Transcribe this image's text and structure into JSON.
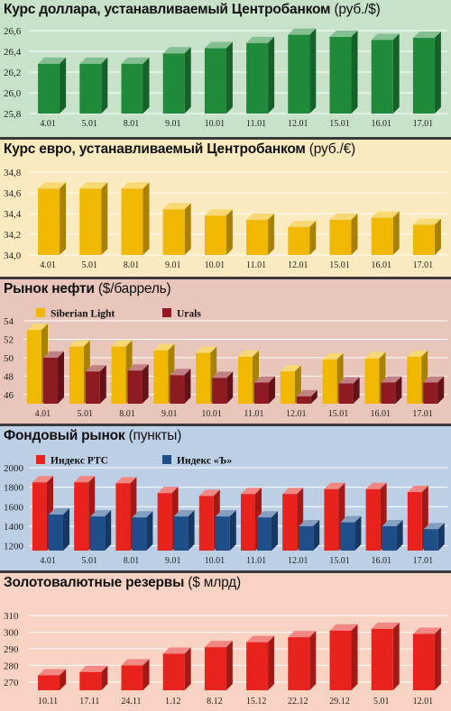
{
  "chart_data": [
    {
      "type": "bar",
      "title": "Курс доллара, устанавливаемый Центробанком",
      "unit": "(руб./$)",
      "categories": [
        "4.01",
        "5.01",
        "8.01",
        "9.01",
        "10.01",
        "11.01",
        "12.01",
        "15.01",
        "16.01",
        "17.01"
      ],
      "series": [
        {
          "values": [
            26.28,
            26.28,
            26.28,
            26.38,
            26.43,
            26.48,
            26.56,
            26.54,
            26.51,
            26.53
          ]
        }
      ],
      "ylim": [
        25.8,
        26.6
      ],
      "yticks": [
        "25,8",
        "26,0",
        "26,2",
        "26,4",
        "26,6"
      ],
      "colors": {
        "bar": "#1f8a3a",
        "panel": "#c7e2c9"
      }
    },
    {
      "type": "bar",
      "title": "Курс евро, устанавливаемый Центробанком",
      "unit": "(руб./€)",
      "categories": [
        "4.01",
        "5.01",
        "8.01",
        "9.01",
        "10.01",
        "11.01",
        "12.01",
        "15.01",
        "16.01",
        "17.01"
      ],
      "series": [
        {
          "values": [
            34.64,
            34.64,
            34.64,
            34.44,
            34.38,
            34.34,
            34.27,
            34.34,
            34.36,
            34.29
          ]
        }
      ],
      "ylim": [
        34.0,
        34.8
      ],
      "yticks": [
        "34,0",
        "34,2",
        "34,4",
        "34,6",
        "34,8"
      ],
      "colors": {
        "bar": "#f0b800",
        "panel": "#faeabf"
      }
    },
    {
      "type": "bar",
      "title": "Рынок нефти",
      "unit": "($/баррель)",
      "categories": [
        "4.01",
        "5.01",
        "8.01",
        "9.01",
        "10.01",
        "11.01",
        "12.01",
        "15.01",
        "16.01",
        "17.01"
      ],
      "series": [
        {
          "name": "Siberian Light",
          "values": [
            53.0,
            51.2,
            51.2,
            50.8,
            50.5,
            50.1,
            48.5,
            49.8,
            49.9,
            50.1
          ]
        },
        {
          "name": "Urals",
          "values": [
            50.0,
            48.5,
            48.6,
            48.1,
            47.8,
            47.3,
            45.8,
            47.2,
            47.3,
            47.3
          ]
        }
      ],
      "ylim": [
        45,
        54
      ],
      "yticks": [
        "46",
        "48",
        "50",
        "52",
        "54"
      ],
      "ytick_values": [
        46,
        48,
        50,
        52,
        54
      ],
      "colors": {
        "s1": "#f0b800",
        "s2": "#8e1a22",
        "panel": "#e9c6bc"
      }
    },
    {
      "type": "bar",
      "title": "Фондовый рынок",
      "unit": "(пункты)",
      "categories": [
        "4.01",
        "5.01",
        "8.01",
        "9.01",
        "10.01",
        "11.01",
        "12.01",
        "15.01",
        "16.01",
        "17.01"
      ],
      "series": [
        {
          "name": "Индекс РТС",
          "values": [
            1850,
            1850,
            1840,
            1740,
            1710,
            1730,
            1730,
            1780,
            1780,
            1750
          ]
        },
        {
          "name": "Индекс «Ъ»",
          "values": [
            1520,
            1500,
            1490,
            1500,
            1500,
            1490,
            1400,
            1440,
            1400,
            1370
          ]
        }
      ],
      "ylim": [
        1150,
        2000
      ],
      "yticks": [
        "1200",
        "1400",
        "1600",
        "1800",
        "2000"
      ],
      "ytick_values": [
        1200,
        1400,
        1600,
        1800,
        2000
      ],
      "colors": {
        "s1": "#e8231e",
        "s2": "#1f4f8a",
        "panel": "#bdcfe5"
      }
    },
    {
      "type": "bar",
      "title": "Золотовалютные резервы",
      "unit": "($ млрд)",
      "categories": [
        "10.11",
        "17.11",
        "24.11",
        "1.12",
        "8.12",
        "15.12",
        "22.12",
        "29.12",
        "5.01",
        "12.01"
      ],
      "series": [
        {
          "values": [
            274,
            276,
            280,
            287,
            291,
            294,
            297,
            301,
            302,
            299
          ]
        }
      ],
      "ylim": [
        265,
        315
      ],
      "yticks": [
        "270",
        "280",
        "290",
        "300",
        "310"
      ],
      "ytick_values": [
        270,
        280,
        290,
        300,
        310
      ],
      "colors": {
        "bar": "#e8231e",
        "panel": "#f8d3c3"
      }
    }
  ]
}
